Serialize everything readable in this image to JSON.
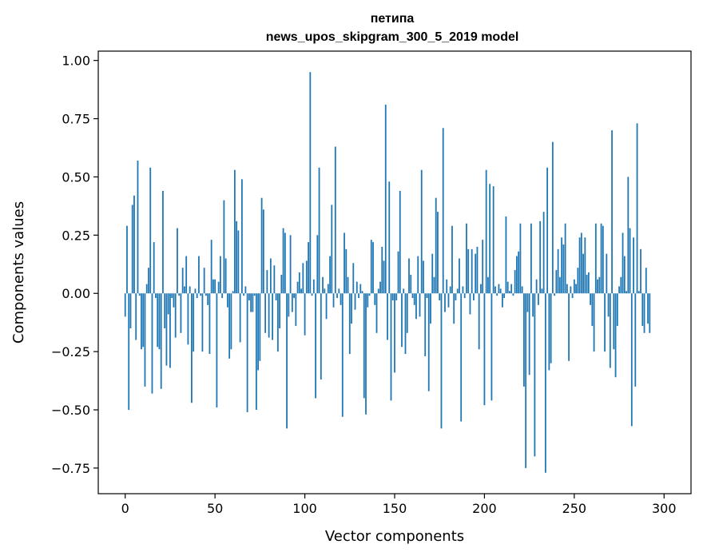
{
  "chart_data": {
    "type": "bar",
    "title": "петипа",
    "subtitle": "news_upos_skipgram_300_5_2019 model",
    "xlabel": "Vector components",
    "ylabel": "Components values",
    "xlim": [
      -15,
      315
    ],
    "ylim": [
      -0.86,
      1.04
    ],
    "x_ticks": [
      0,
      50,
      100,
      150,
      200,
      250,
      300
    ],
    "y_ticks": [
      -0.75,
      -0.5,
      -0.25,
      0.0,
      0.25,
      0.5,
      0.75,
      1.0
    ],
    "y_tick_labels": [
      "−0.75",
      "−0.50",
      "−0.25",
      "0.00",
      "0.25",
      "0.50",
      "0.75",
      "1.00"
    ],
    "bar_color": "#1f77b4",
    "grid": false,
    "values": [
      -0.1,
      0.29,
      -0.5,
      -0.15,
      0.38,
      0.42,
      -0.2,
      0.57,
      -0.01,
      -0.24,
      -0.23,
      -0.4,
      0.04,
      0.11,
      0.54,
      -0.43,
      0.22,
      -0.02,
      -0.23,
      -0.24,
      -0.41,
      0.44,
      -0.15,
      -0.31,
      -0.09,
      -0.32,
      -0.02,
      -0.06,
      -0.19,
      0.28,
      -0.01,
      -0.17,
      0.11,
      0.03,
      0.16,
      -0.22,
      0.03,
      -0.47,
      -0.25,
      0.02,
      -0.02,
      0.16,
      -0.01,
      -0.25,
      0.11,
      -0.01,
      -0.05,
      -0.26,
      0.23,
      0.06,
      0.06,
      -0.49,
      0.05,
      0.16,
      -0.02,
      0.4,
      0.15,
      -0.06,
      -0.28,
      -0.24,
      0.01,
      0.53,
      0.31,
      0.27,
      -0.21,
      0.49,
      -0.01,
      0.03,
      -0.51,
      -0.03,
      -0.08,
      -0.08,
      -0.01,
      -0.5,
      -0.33,
      -0.29,
      0.41,
      0.36,
      -0.17,
      0.1,
      -0.19,
      0.15,
      -0.2,
      0.12,
      -0.03,
      -0.25,
      -0.15,
      0.08,
      0.28,
      0.26,
      -0.58,
      -0.1,
      0.25,
      -0.08,
      -0.02,
      -0.14,
      0.05,
      0.09,
      0.02,
      0.13,
      -0.18,
      0.14,
      0.22,
      0.95,
      -0.01,
      0.06,
      -0.45,
      0.25,
      0.54,
      -0.37,
      0.07,
      0.02,
      -0.11,
      0.04,
      0.16,
      0.38,
      -0.06,
      0.63,
      -0.02,
      0.02,
      -0.05,
      -0.53,
      0.26,
      0.19,
      0.07,
      -0.26,
      -0.13,
      0.13,
      -0.07,
      0.05,
      -0.02,
      0.04,
      0.01,
      -0.45,
      -0.52,
      -0.06,
      -0.01,
      0.23,
      0.22,
      -0.05,
      -0.17,
      0.02,
      0.05,
      0.2,
      0.14,
      0.81,
      -0.2,
      0.48,
      -0.46,
      -0.03,
      -0.34,
      -0.03,
      0.18,
      0.44,
      -0.23,
      0.02,
      -0.26,
      -0.17,
      0.15,
      0.08,
      -0.02,
      -0.05,
      -0.11,
      0.16,
      -0.1,
      0.53,
      0.14,
      -0.27,
      -0.02,
      -0.42,
      -0.13,
      0.17,
      0.07,
      0.41,
      0.35,
      -0.03,
      -0.58,
      0.71,
      -0.08,
      0.06,
      -0.06,
      0.03,
      0.29,
      -0.13,
      -0.03,
      0.02,
      0.15,
      -0.55,
      0.03,
      -0.02,
      0.3,
      0.19,
      -0.09,
      0.19,
      -0.03,
      0.17,
      0.2,
      -0.24,
      0.04,
      0.23,
      -0.48,
      0.53,
      0.07,
      0.47,
      -0.46,
      0.46,
      0.03,
      -0.01,
      0.04,
      0.02,
      -0.06,
      -0.02,
      0.33,
      0.05,
      0.01,
      0.04,
      -0.01,
      0.1,
      0.16,
      0.18,
      0.3,
      0.03,
      -0.4,
      -0.75,
      -0.08,
      -0.35,
      0.3,
      -0.1,
      -0.7,
      0.06,
      -0.05,
      0.31,
      0.02,
      0.35,
      -0.77,
      0.54,
      -0.33,
      -0.3,
      0.65,
      -0.01,
      0.1,
      0.19,
      0.07,
      0.24,
      0.21,
      0.3,
      0.04,
      -0.29,
      0.03,
      -0.02,
      0.06,
      0.04,
      0.11,
      0.24,
      0.26,
      0.17,
      0.24,
      0.08,
      0.09,
      -0.05,
      -0.14,
      -0.25,
      0.3,
      0.06,
      0.07,
      0.3,
      0.29,
      -0.25,
      0.17,
      -0.1,
      -0.32,
      0.7,
      -0.24,
      -0.36,
      -0.14,
      0.03,
      0.07,
      0.26,
      0.16,
      0.01,
      0.5,
      0.28,
      -0.57,
      0.24,
      -0.4,
      0.73,
      0.01,
      0.19,
      -0.14,
      -0.17,
      0.11,
      -0.13,
      -0.17
    ]
  }
}
